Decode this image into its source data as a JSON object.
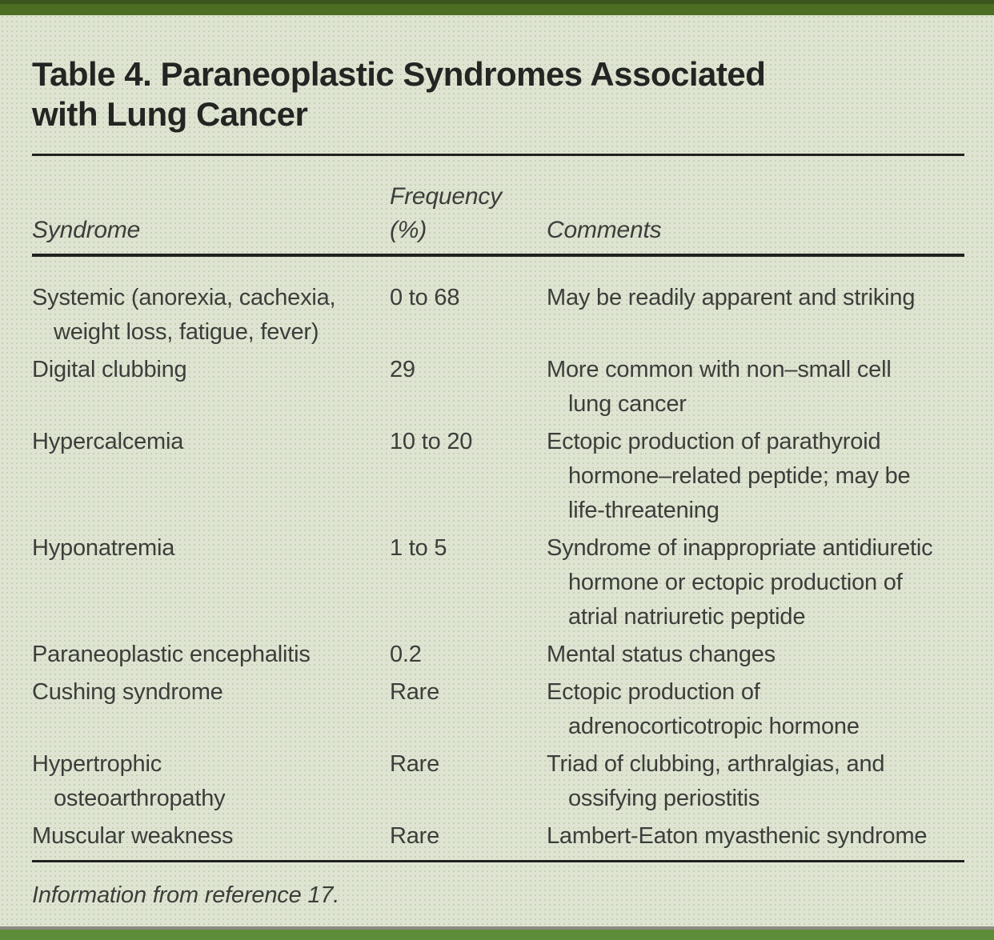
{
  "page": {
    "title_line1": "Table 4. Paraneoplastic Syndromes Associated",
    "title_line2": "with Lung Cancer",
    "footnote": "Information from reference 17."
  },
  "colors": {
    "background": "#dfe4d2",
    "top_bar": "#4c6e23",
    "top_bar_edge": "#3a561c",
    "bottom_bar": "#5d8d39",
    "bottom_gray_line": "#8b8b83",
    "rule": "#202220",
    "text": "#3b3e3a"
  },
  "table": {
    "columns": [
      {
        "key": "syndrome",
        "label_lines": [
          "Syndrome"
        ]
      },
      {
        "key": "frequency",
        "label_lines": [
          "Frequency",
          "(%)"
        ]
      },
      {
        "key": "comments",
        "label_lines": [
          "Comments"
        ]
      }
    ],
    "rows": [
      {
        "syndrome": [
          "Systemic (anorexia, cachexia,",
          "weight loss, fatigue, fever)"
        ],
        "frequency": "0 to 68",
        "comments": [
          "May be readily apparent and striking"
        ]
      },
      {
        "syndrome": [
          "Digital clubbing"
        ],
        "frequency": "29",
        "comments": [
          "More common with non–small cell",
          "lung cancer"
        ]
      },
      {
        "syndrome": [
          "Hypercalcemia"
        ],
        "frequency": "10 to 20",
        "comments": [
          "Ectopic production of parathyroid",
          "hormone–related peptide; may be",
          "life-threatening"
        ]
      },
      {
        "syndrome": [
          "Hyponatremia"
        ],
        "frequency": "1 to 5",
        "comments": [
          "Syndrome of inappropriate antidiuretic",
          "hormone or ectopic production of",
          "atrial natriuretic peptide"
        ]
      },
      {
        "syndrome": [
          "Paraneoplastic encephalitis"
        ],
        "frequency": "0.2",
        "comments": [
          "Mental status changes"
        ]
      },
      {
        "syndrome": [
          "Cushing syndrome"
        ],
        "frequency": "Rare",
        "comments": [
          "Ectopic production of",
          "adrenocorticotropic hormone"
        ]
      },
      {
        "syndrome": [
          "Hypertrophic",
          "osteoarthropathy"
        ],
        "frequency": "Rare",
        "comments": [
          "Triad of clubbing, arthralgias, and",
          "ossifying periostitis"
        ]
      },
      {
        "syndrome": [
          "Muscular weakness"
        ],
        "frequency": "Rare",
        "comments": [
          "Lambert-Eaton myasthenic syndrome"
        ]
      }
    ]
  }
}
